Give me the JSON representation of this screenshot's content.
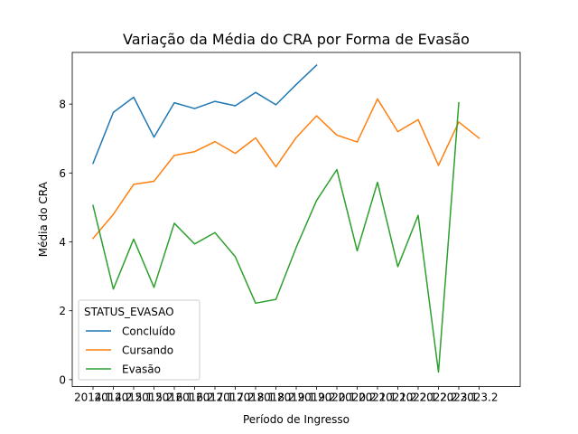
{
  "chart_data": {
    "type": "line",
    "title": "Variação da Média do CRA por Forma de Evasão",
    "xlabel": "Período de Ingresso",
    "ylabel": "Média do CRA",
    "categories": [
      "2014.1",
      "2014.2",
      "2015.1",
      "2015.2",
      "2016.1",
      "2016.2",
      "2017.1",
      "2017.2",
      "2018.1",
      "2018.2",
      "2019.1",
      "2019.2",
      "2020.1",
      "2020.2",
      "2021.1",
      "2021.2",
      "2022.1",
      "2022.2",
      "2023.1",
      "2023.2"
    ],
    "ylim": [
      -0.2,
      9.5
    ],
    "yticks": [
      0,
      2,
      4,
      6,
      8
    ],
    "grid": false,
    "legend": {
      "title": "STATUS_EVASAO",
      "position": "lower-left"
    },
    "series": [
      {
        "name": "Concluído",
        "color": "#1f77b4",
        "values": [
          6.28,
          7.76,
          8.2,
          7.04,
          8.04,
          7.87,
          8.08,
          7.95,
          8.34,
          7.98,
          8.57,
          9.13,
          null,
          null,
          null,
          null,
          null,
          null,
          null,
          null
        ]
      },
      {
        "name": "Cursando",
        "color": "#ff7f0e",
        "values": [
          4.1,
          4.8,
          5.67,
          5.76,
          6.51,
          6.62,
          6.91,
          6.57,
          7.02,
          6.18,
          7.03,
          7.66,
          7.1,
          6.9,
          8.15,
          7.2,
          7.55,
          6.22,
          7.48,
          7.01
        ]
      },
      {
        "name": "Evasão",
        "color": "#2ca02c",
        "values": [
          5.06,
          2.63,
          4.08,
          2.68,
          4.54,
          3.94,
          4.27,
          3.57,
          2.22,
          2.33,
          3.84,
          5.2,
          6.1,
          3.74,
          5.73,
          3.28,
          4.77,
          0.22,
          8.04,
          null
        ]
      }
    ]
  }
}
